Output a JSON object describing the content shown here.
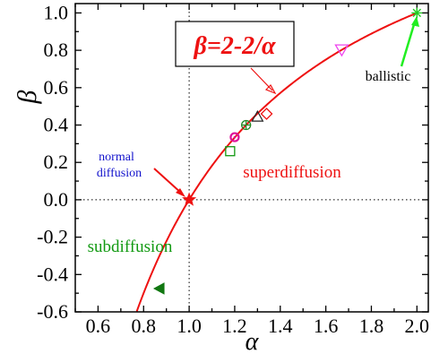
{
  "chart_data": {
    "type": "scatter",
    "title": "",
    "xlabel": "α",
    "ylabel": "β",
    "xlim": [
      0.5,
      2.05
    ],
    "ylim": [
      -0.6,
      1.05
    ],
    "x_ticks": [
      0.6,
      0.8,
      1.0,
      1.2,
      1.4,
      1.6,
      1.8,
      2.0
    ],
    "x_tick_labels": [
      "0.6",
      "0.8",
      "1.0",
      "1.2",
      "1.4",
      "1.6",
      "1.8",
      "2.0"
    ],
    "y_ticks": [
      -0.6,
      -0.4,
      -0.2,
      0.0,
      0.2,
      0.4,
      0.6,
      0.8,
      1.0
    ],
    "y_tick_labels": [
      "-0.6",
      "-0.4",
      "-0.2",
      "0.0",
      "0.2",
      "0.4",
      "0.6",
      "0.8",
      "1.0"
    ],
    "grid": false,
    "reference_lines": {
      "x": 1.0,
      "y": 0.0,
      "style": "dotted"
    },
    "curve": {
      "label": "β=2-2/α",
      "formula": "2-2/x",
      "x_range": [
        0.77,
        2.0
      ],
      "color": "#ee1111"
    },
    "points": [
      {
        "x": 1.0,
        "y": 0.0,
        "marker": "star",
        "color": "#ee1111",
        "filled": true
      },
      {
        "x": 1.18,
        "y": 0.26,
        "marker": "square",
        "color": "#119911",
        "filled": false
      },
      {
        "x": 1.2,
        "y": 0.335,
        "marker": "circle-dot",
        "color": "#dd1199",
        "filled": false
      },
      {
        "x": 1.25,
        "y": 0.4,
        "marker": "circle-plus",
        "color": "#228822",
        "filled": false
      },
      {
        "x": 1.3,
        "y": 0.445,
        "marker": "triangle-up",
        "color": "#222222",
        "filled": false
      },
      {
        "x": 1.34,
        "y": 0.46,
        "marker": "diamond",
        "color": "#ee1111",
        "filled": false
      },
      {
        "x": 1.67,
        "y": 0.8,
        "marker": "triangle-down",
        "color": "#ee44ee",
        "filled": false
      },
      {
        "x": 2.0,
        "y": 1.0,
        "marker": "asterisk",
        "color": "#22cc22",
        "filled": false
      },
      {
        "x": 0.87,
        "y": -0.475,
        "marker": "triangle-left",
        "color": "#117711",
        "filled": true
      }
    ],
    "annotations": [
      {
        "text": "normal",
        "color": "#1111cc",
        "size": "small"
      },
      {
        "text": "diffusion",
        "color": "#1111cc",
        "size": "small"
      },
      {
        "text": "superdiffusion",
        "color": "#ee1111",
        "size": "large"
      },
      {
        "text": "subdiffusion",
        "color": "#119911",
        "size": "large"
      },
      {
        "text": "ballistic",
        "color": "#000000",
        "size": "medium"
      }
    ],
    "colors": {
      "axis": "#000000",
      "reference": "#000000",
      "curve": "#ee1111",
      "arrow_normal": "#ee1111",
      "arrow_formula": "#ee1111",
      "arrow_ballistic": "#22ee22",
      "formula_box_border": "#000000"
    }
  }
}
